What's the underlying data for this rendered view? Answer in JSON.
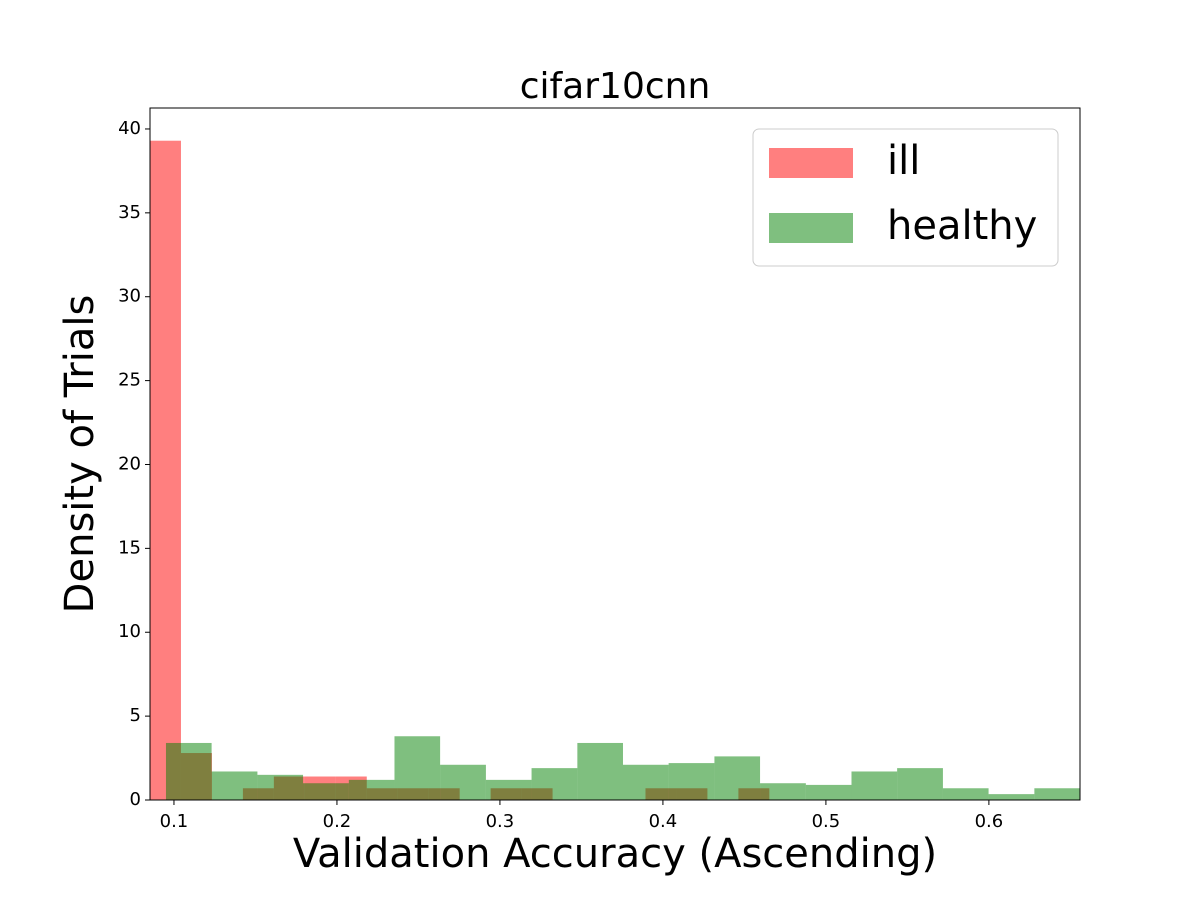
{
  "chart_data": {
    "type": "histogram",
    "title": "cifar10cnn",
    "xlabel": "Validation Accuracy (Ascending)",
    "ylabel": "Density of Trials",
    "series": [
      {
        "name": "ill",
        "color": "#ff0000",
        "bins": [
          0.0853,
          0.1043,
          0.1233,
          0.1423,
          0.1613,
          0.1803,
          0.1993,
          0.2183,
          0.2373,
          0.2563,
          0.2753,
          0.2943,
          0.3133,
          0.3323,
          0.3513,
          0.3703,
          0.3893,
          0.4083,
          0.4273,
          0.4463,
          0.4653
        ],
        "values": [
          39.3,
          2.8,
          0,
          0.7,
          1.4,
          1.4,
          1.4,
          0.7,
          0.7,
          0.7,
          0,
          0.7,
          0.7,
          0,
          0,
          0,
          0.7,
          0.7,
          0,
          0.7
        ]
      },
      {
        "name": "healthy",
        "color": "#008000",
        "bins": [
          0.0951,
          0.1231,
          0.1512,
          0.1792,
          0.2073,
          0.2353,
          0.2633,
          0.2914,
          0.3194,
          0.3475,
          0.3755,
          0.4035,
          0.4316,
          0.4596,
          0.4877,
          0.5157,
          0.5437,
          0.5718,
          0.5998,
          0.6279,
          0.6559
        ],
        "values": [
          3.4,
          1.7,
          1.5,
          1.0,
          1.2,
          3.8,
          2.1,
          1.2,
          1.9,
          3.4,
          2.1,
          2.2,
          2.6,
          1.0,
          0.9,
          1.7,
          1.9,
          0.7,
          0.35,
          0.7
        ]
      }
    ],
    "alpha": 0.5,
    "xlim": [
      0.0853,
      0.6559
    ],
    "ylim": [
      0,
      41.25
    ],
    "xticks": [
      0.1,
      0.2,
      0.3,
      0.4,
      0.5,
      0.6
    ],
    "yticks": [
      0,
      5,
      10,
      15,
      20,
      25,
      30,
      35,
      40
    ],
    "legend": "upper right"
  }
}
